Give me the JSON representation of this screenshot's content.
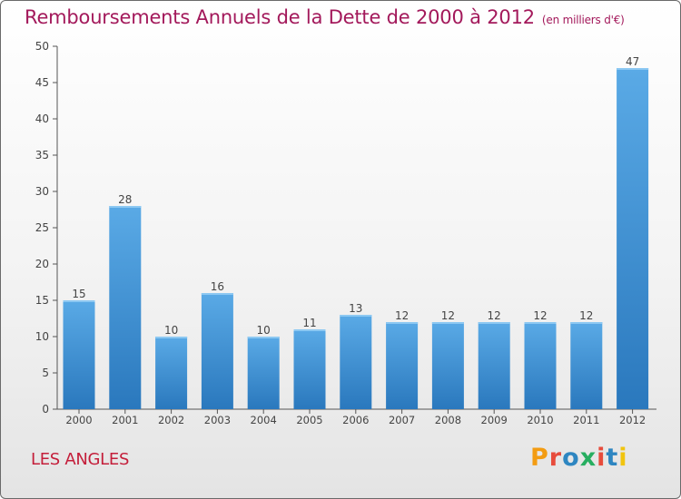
{
  "header": {
    "title": "Remboursements Annuels de la Dette de 2000 à 2012",
    "subtitle": "(en milliers d'€)"
  },
  "footer": {
    "commune": "LES ANGLES",
    "logo_text": "Proxiti",
    "logo_icon": "proxiti-logo"
  },
  "colors": {
    "title": "#a3195b",
    "commune": "#c41e3a",
    "bar_top": "#5aaae6",
    "bar_bottom": "#2a78bd",
    "logo_letters": [
      "#f39c12",
      "#e74c3c",
      "#2e86c1",
      "#27ae60",
      "#e74c3c",
      "#2e86c1",
      "#f1c40f"
    ]
  },
  "chart_data": {
    "type": "bar",
    "categories": [
      "2000",
      "2001",
      "2002",
      "2003",
      "2004",
      "2005",
      "2006",
      "2007",
      "2008",
      "2009",
      "2010",
      "2011",
      "2012"
    ],
    "values": [
      15,
      28,
      10,
      16,
      10,
      11,
      13,
      12,
      12,
      12,
      12,
      12,
      47
    ],
    "title": "Remboursements Annuels de la Dette de 2000 à 2012",
    "subtitle": "(en milliers d'€)",
    "xlabel": "",
    "ylabel": "",
    "ylim": [
      0,
      50
    ],
    "yticks": [
      0,
      5,
      10,
      15,
      20,
      25,
      30,
      35,
      40,
      45,
      50
    ],
    "grid": false,
    "data_labels": true,
    "legend": "none"
  }
}
